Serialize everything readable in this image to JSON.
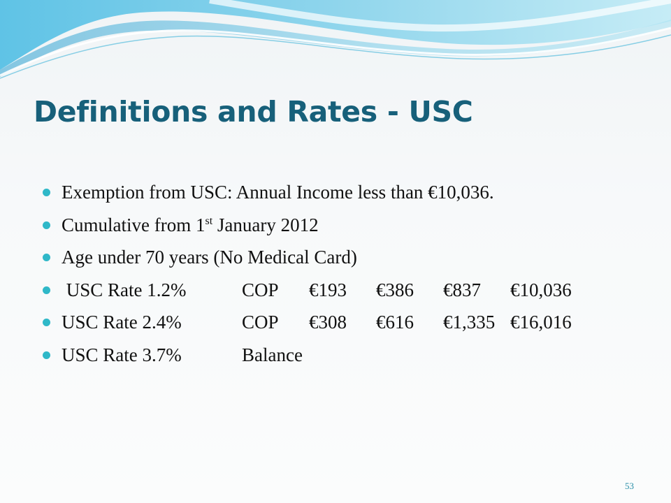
{
  "slide": {
    "title": "Definitions and Rates - USC",
    "page_number": "53",
    "colors": {
      "title": "#17607a",
      "bullet": "#2fb8c8",
      "wave": "#3aa9d6"
    }
  },
  "bullets": [
    {
      "text": "Exemption from USC: Annual Income less than €10,036."
    },
    {
      "text_before": "Cumulative from 1",
      "superscript": "st",
      "text_after": " January 2012"
    },
    {
      "text": "Age under 70 years (No Medical Card)"
    }
  ],
  "rates": [
    {
      "rate": " USC Rate 1.2%",
      "type": "COP",
      "values": [
        "€193",
        "€386",
        "€837",
        "€10,036"
      ]
    },
    {
      "rate": "USC Rate 2.4%",
      "type": "COP",
      "values": [
        "€308",
        "€616",
        "€1,335",
        "€16,016"
      ]
    },
    {
      "rate": "USC Rate 3.7%",
      "type": "Balance",
      "values": []
    }
  ]
}
